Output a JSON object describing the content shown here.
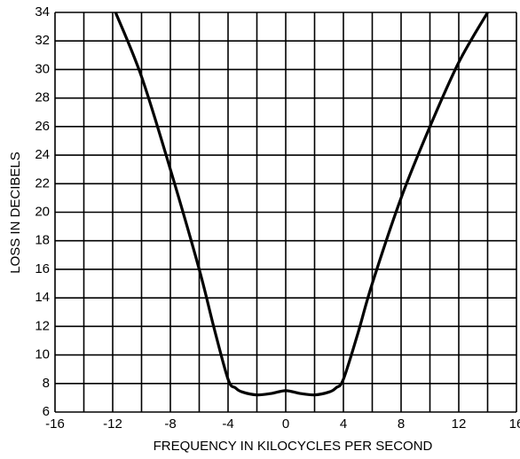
{
  "chart_data": {
    "type": "line",
    "xlabel": "FREQUENCY IN KILOCYCLES PER SECOND",
    "ylabel": "LOSS IN DECIBELS",
    "x": [
      -11.8,
      -10,
      -8,
      -6,
      -5,
      -4,
      -3.5,
      -3,
      -2,
      -1,
      0,
      1,
      2,
      3,
      3.5,
      4,
      5,
      6,
      8,
      10,
      12,
      14
    ],
    "series": [
      {
        "name": "Loss",
        "color": "#000000",
        "values": [
          34,
          29.5,
          23,
          16,
          12,
          8.3,
          7.7,
          7.4,
          7.2,
          7.3,
          7.5,
          7.3,
          7.2,
          7.4,
          7.7,
          8.3,
          11.5,
          15,
          21,
          26,
          30.5,
          34
        ]
      }
    ],
    "xlim": [
      -16,
      16
    ],
    "xticks": [
      -16,
      -12,
      -8,
      -4,
      0,
      4,
      8,
      12,
      16
    ],
    "xgrid": [
      -16,
      -14,
      -12,
      -10,
      -8,
      -6,
      -4,
      -2,
      0,
      2,
      4,
      6,
      8,
      10,
      12,
      14,
      16
    ],
    "ylim": [
      6,
      34
    ],
    "yticks": [
      6,
      8,
      10,
      12,
      14,
      16,
      18,
      20,
      22,
      24,
      26,
      28,
      30,
      32,
      34
    ],
    "grid": true
  }
}
